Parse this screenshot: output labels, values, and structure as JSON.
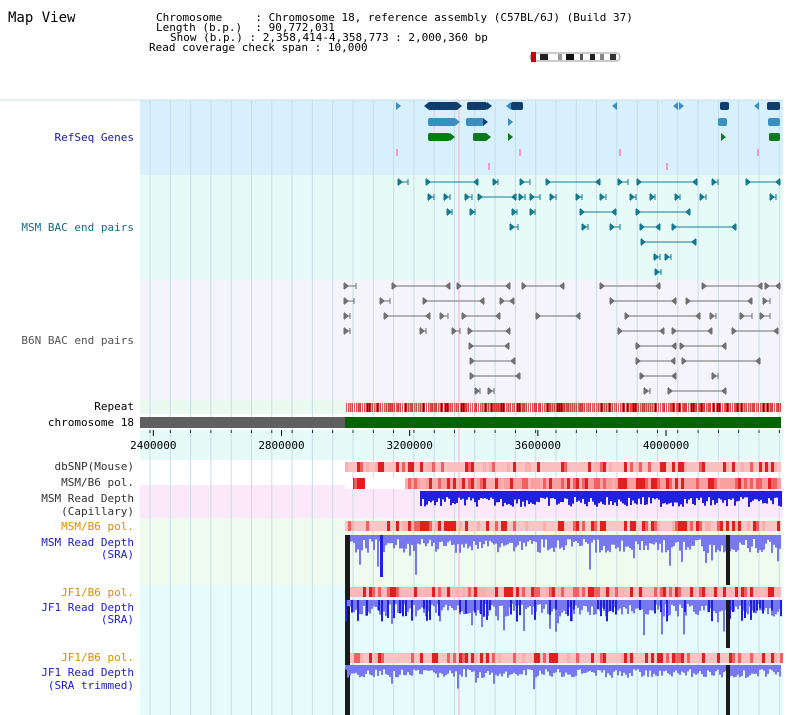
{
  "title": "Map View",
  "info": {
    "chromosome_label": "Chromosome",
    "chromosome_value": "Chromosome 18, reference assembly (C57BL/6J) (Build 37)",
    "length_label": "Length (b.p.)",
    "length_value": "90,772,031",
    "show_label": "Show (b.p.)",
    "show_value": "2,358,414-4,358,773 : 2,000,360 bp",
    "read_cov_label": "Read coverage check span",
    "read_cov_value": "10,000"
  },
  "tracks": {
    "refseq": "RefSeq Genes",
    "msm_bac": "MSM BAC end pairs",
    "b6n_bac": "B6N BAC end pairs",
    "repeat": "Repeat",
    "chromosome": "chromosome 18",
    "dbsnp": "dbSNP(Mouse)",
    "msm_b6_pol_1": "MSM/B6 pol.",
    "msm_depth_cap_1": "MSM Read Depth",
    "msm_depth_cap_2": "(Capillary)",
    "msm_b6_pol_2": "MSM/B6 pol.",
    "msm_depth_sra_1": "MSM Read Depth",
    "msm_depth_sra_2": "(SRA)",
    "jf1_b6_pol_1": "JF1/B6 pol.",
    "jf1_depth_sra_1": "JF1 Read Depth",
    "jf1_depth_sra_2": "(SRA)",
    "jf1_b6_pol_2": "JF1/B6 pol.",
    "jf1_depth_trim_1": "JF1 Read Depth",
    "jf1_depth_trim_2": "(SRA trimmed)"
  },
  "axis": {
    "ticks": [
      "2400000",
      "2800000",
      "3200000",
      "3600000",
      "4000000"
    ],
    "tick_values": [
      2400000,
      2800000,
      3200000,
      3600000,
      4000000
    ],
    "range": [
      2358414,
      4358773
    ]
  },
  "colors": {
    "refseq_dark": "#0e3d6e",
    "refseq_mid": "#3b8fc0",
    "refseq_green": "#0a7a1a",
    "msm_pair": "#157a90",
    "b6n_pair": "#707070",
    "chrom_green": "#006400",
    "chrom_gray": "#606060",
    "depth_blue": "#2020e0",
    "depth_light": "#7777ee",
    "pol_red": "#ee3333"
  }
}
